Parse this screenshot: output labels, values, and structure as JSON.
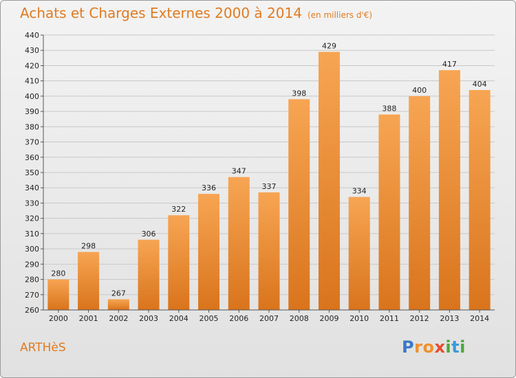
{
  "chart_data": {
    "type": "bar",
    "title": "Achats et Charges Externes 2000 à 2014",
    "subtitle": "(en milliers d'€)",
    "categories": [
      "2000",
      "2001",
      "2002",
      "2003",
      "2004",
      "2005",
      "2006",
      "2007",
      "2008",
      "2009",
      "2010",
      "2011",
      "2012",
      "2013",
      "2014"
    ],
    "values": [
      280,
      298,
      267,
      306,
      322,
      336,
      347,
      337,
      398,
      429,
      334,
      388,
      400,
      417,
      404
    ],
    "ylim": [
      260,
      440
    ],
    "yticks": [
      260,
      270,
      280,
      290,
      300,
      310,
      320,
      330,
      340,
      350,
      360,
      370,
      380,
      390,
      400,
      410,
      420,
      430,
      440
    ],
    "grid": true,
    "bar_color_top": "#f7a553",
    "bar_color_bottom": "#d9741c"
  },
  "commune": "ARTHèS",
  "logo": {
    "letters": [
      "P",
      "r",
      "o",
      "x",
      "i",
      "t",
      "i"
    ],
    "colors": [
      "#3a78c8",
      "#f0902a",
      "#f0902a",
      "#e84b2b",
      "#4aa838",
      "#3a9ad8",
      "#4aa838"
    ]
  }
}
